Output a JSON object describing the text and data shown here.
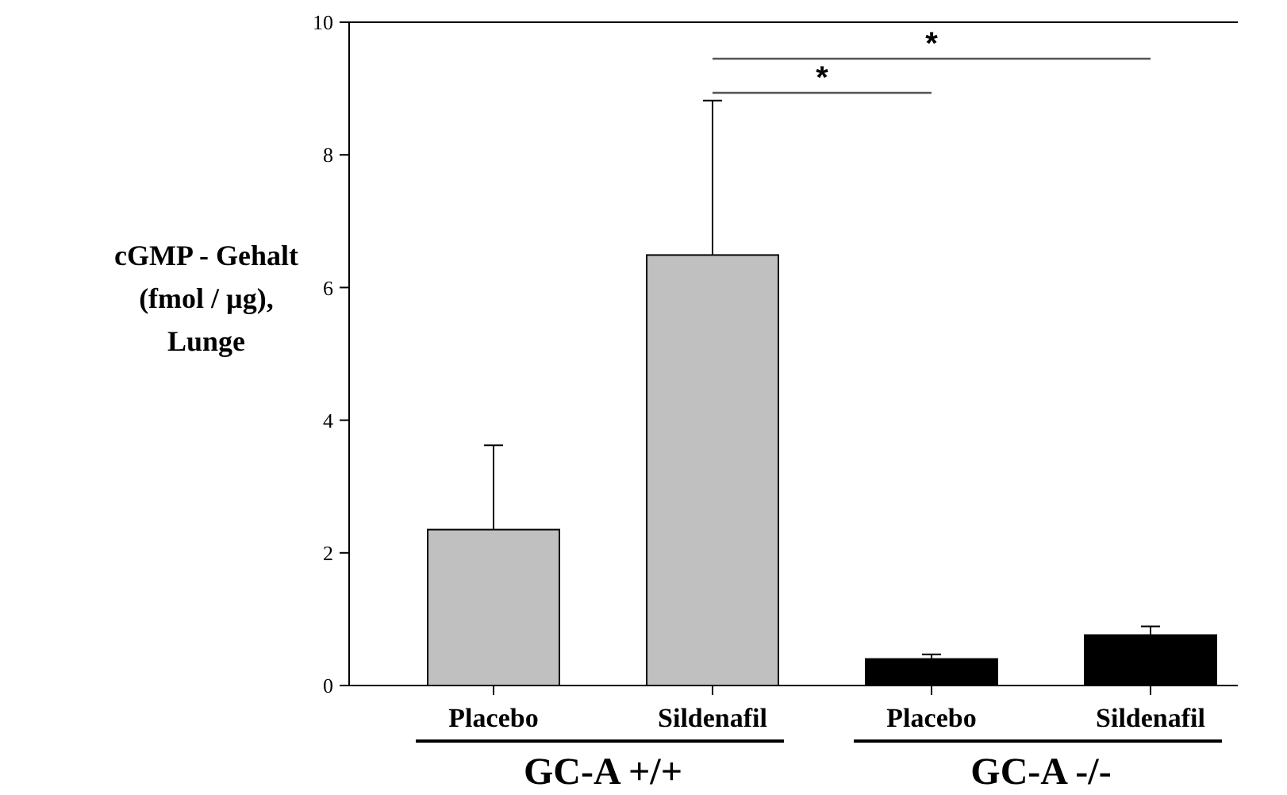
{
  "chart_data": {
    "type": "bar",
    "ylabel": "cGMP - Gehalt\n(fmol / µg),\nLunge",
    "categories": [
      "Placebo",
      "Sildenafil",
      "Placebo",
      "Sildenafil"
    ],
    "values": [
      2.35,
      6.49,
      0.4,
      0.76
    ],
    "colors": [
      "#c0c0c0",
      "#c0c0c0",
      "#000000",
      "#000000"
    ],
    "errors": [
      [
        2.35,
        3.62
      ],
      [
        6.49,
        8.82
      ],
      [
        0.4,
        0.47
      ],
      [
        0.76,
        0.89
      ]
    ],
    "ylim": [
      0,
      10
    ],
    "yticks": [
      0,
      2,
      4,
      6,
      8,
      10
    ],
    "grid": false,
    "annotations": [
      "*",
      "*",
      "GC-A +/+",
      "GC-A -/-"
    ]
  }
}
